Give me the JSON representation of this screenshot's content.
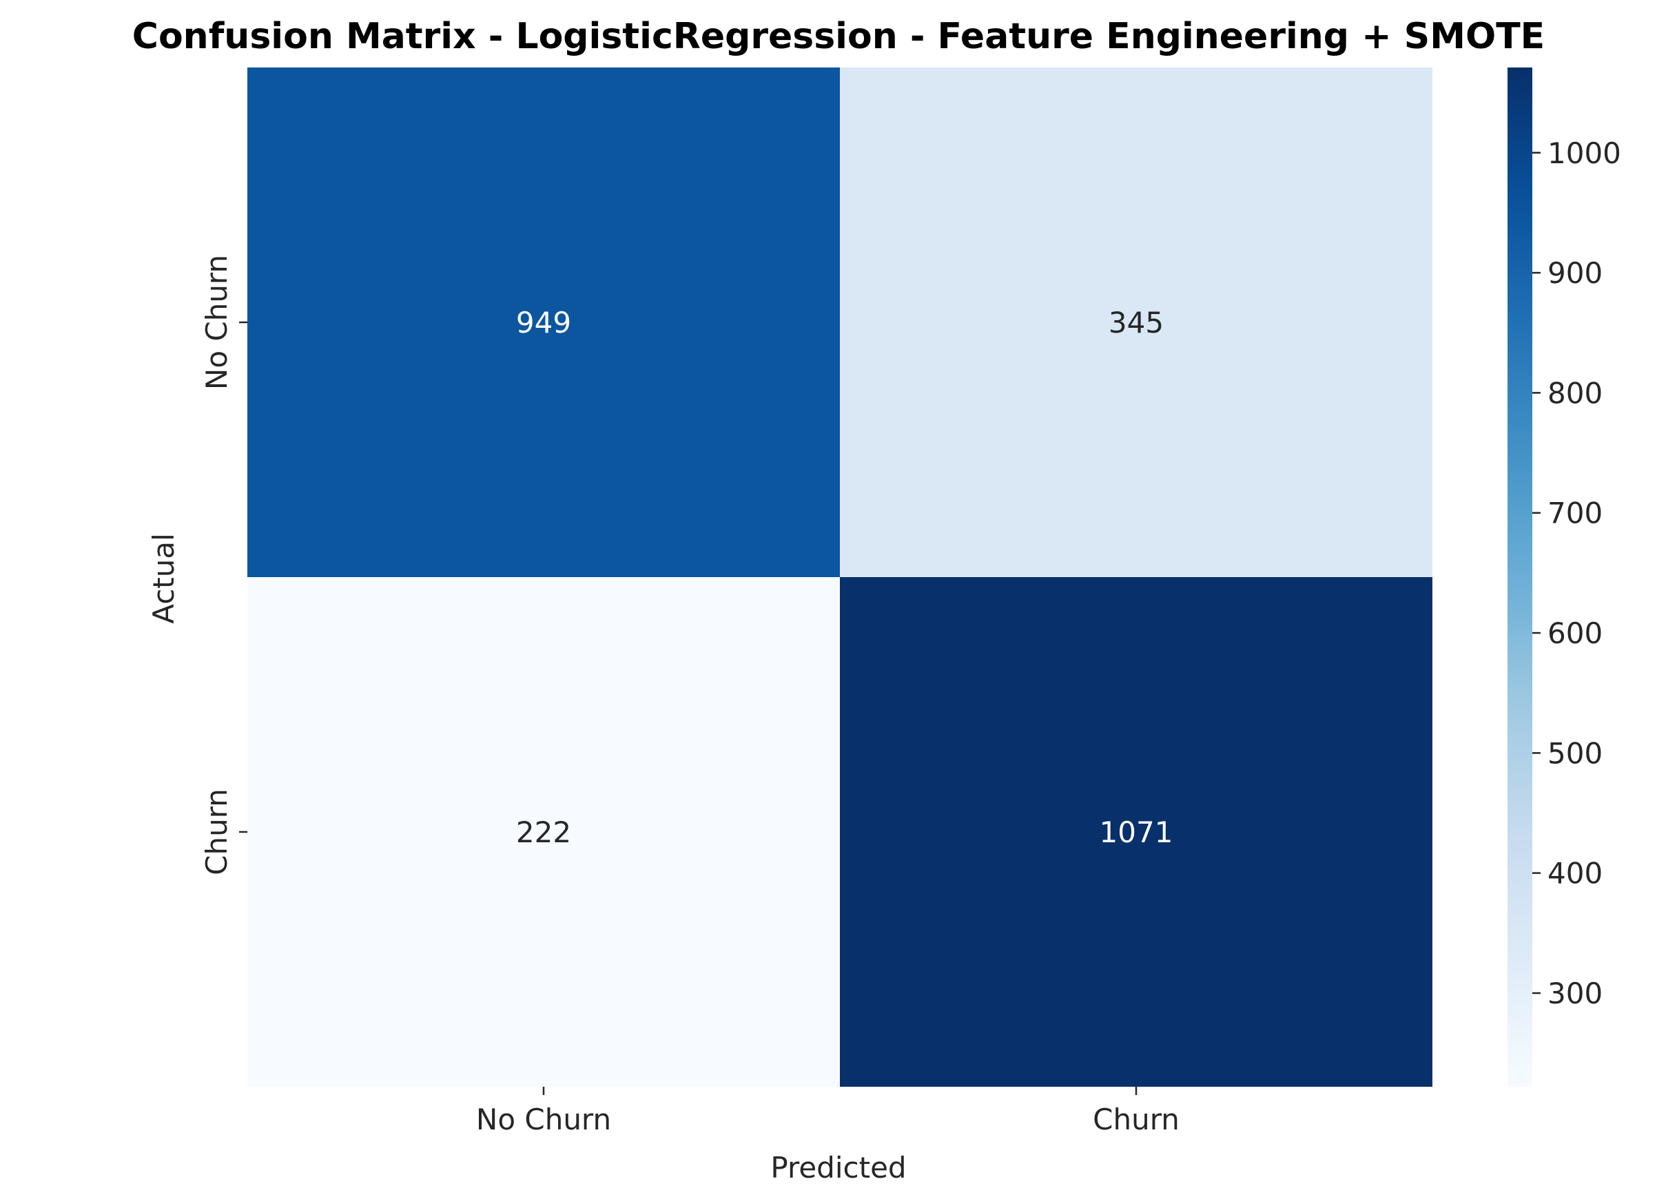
{
  "chart_data": {
    "type": "heatmap",
    "title": "Confusion Matrix - LogisticRegression - Feature Engineering + SMOTE",
    "xlabel": "Predicted",
    "ylabel": "Actual",
    "x_categories": [
      "No Churn",
      "Churn"
    ],
    "y_categories": [
      "No Churn",
      "Churn"
    ],
    "matrix": [
      [
        949,
        345
      ],
      [
        222,
        1071
      ]
    ],
    "colormap": "Blues",
    "colorbar": {
      "vmin": 222,
      "vmax": 1071,
      "ticks": [
        300,
        400,
        500,
        600,
        700,
        800,
        900,
        1000
      ]
    },
    "text_colors": {
      "light": "#ffffff",
      "dark": "#262626"
    }
  }
}
